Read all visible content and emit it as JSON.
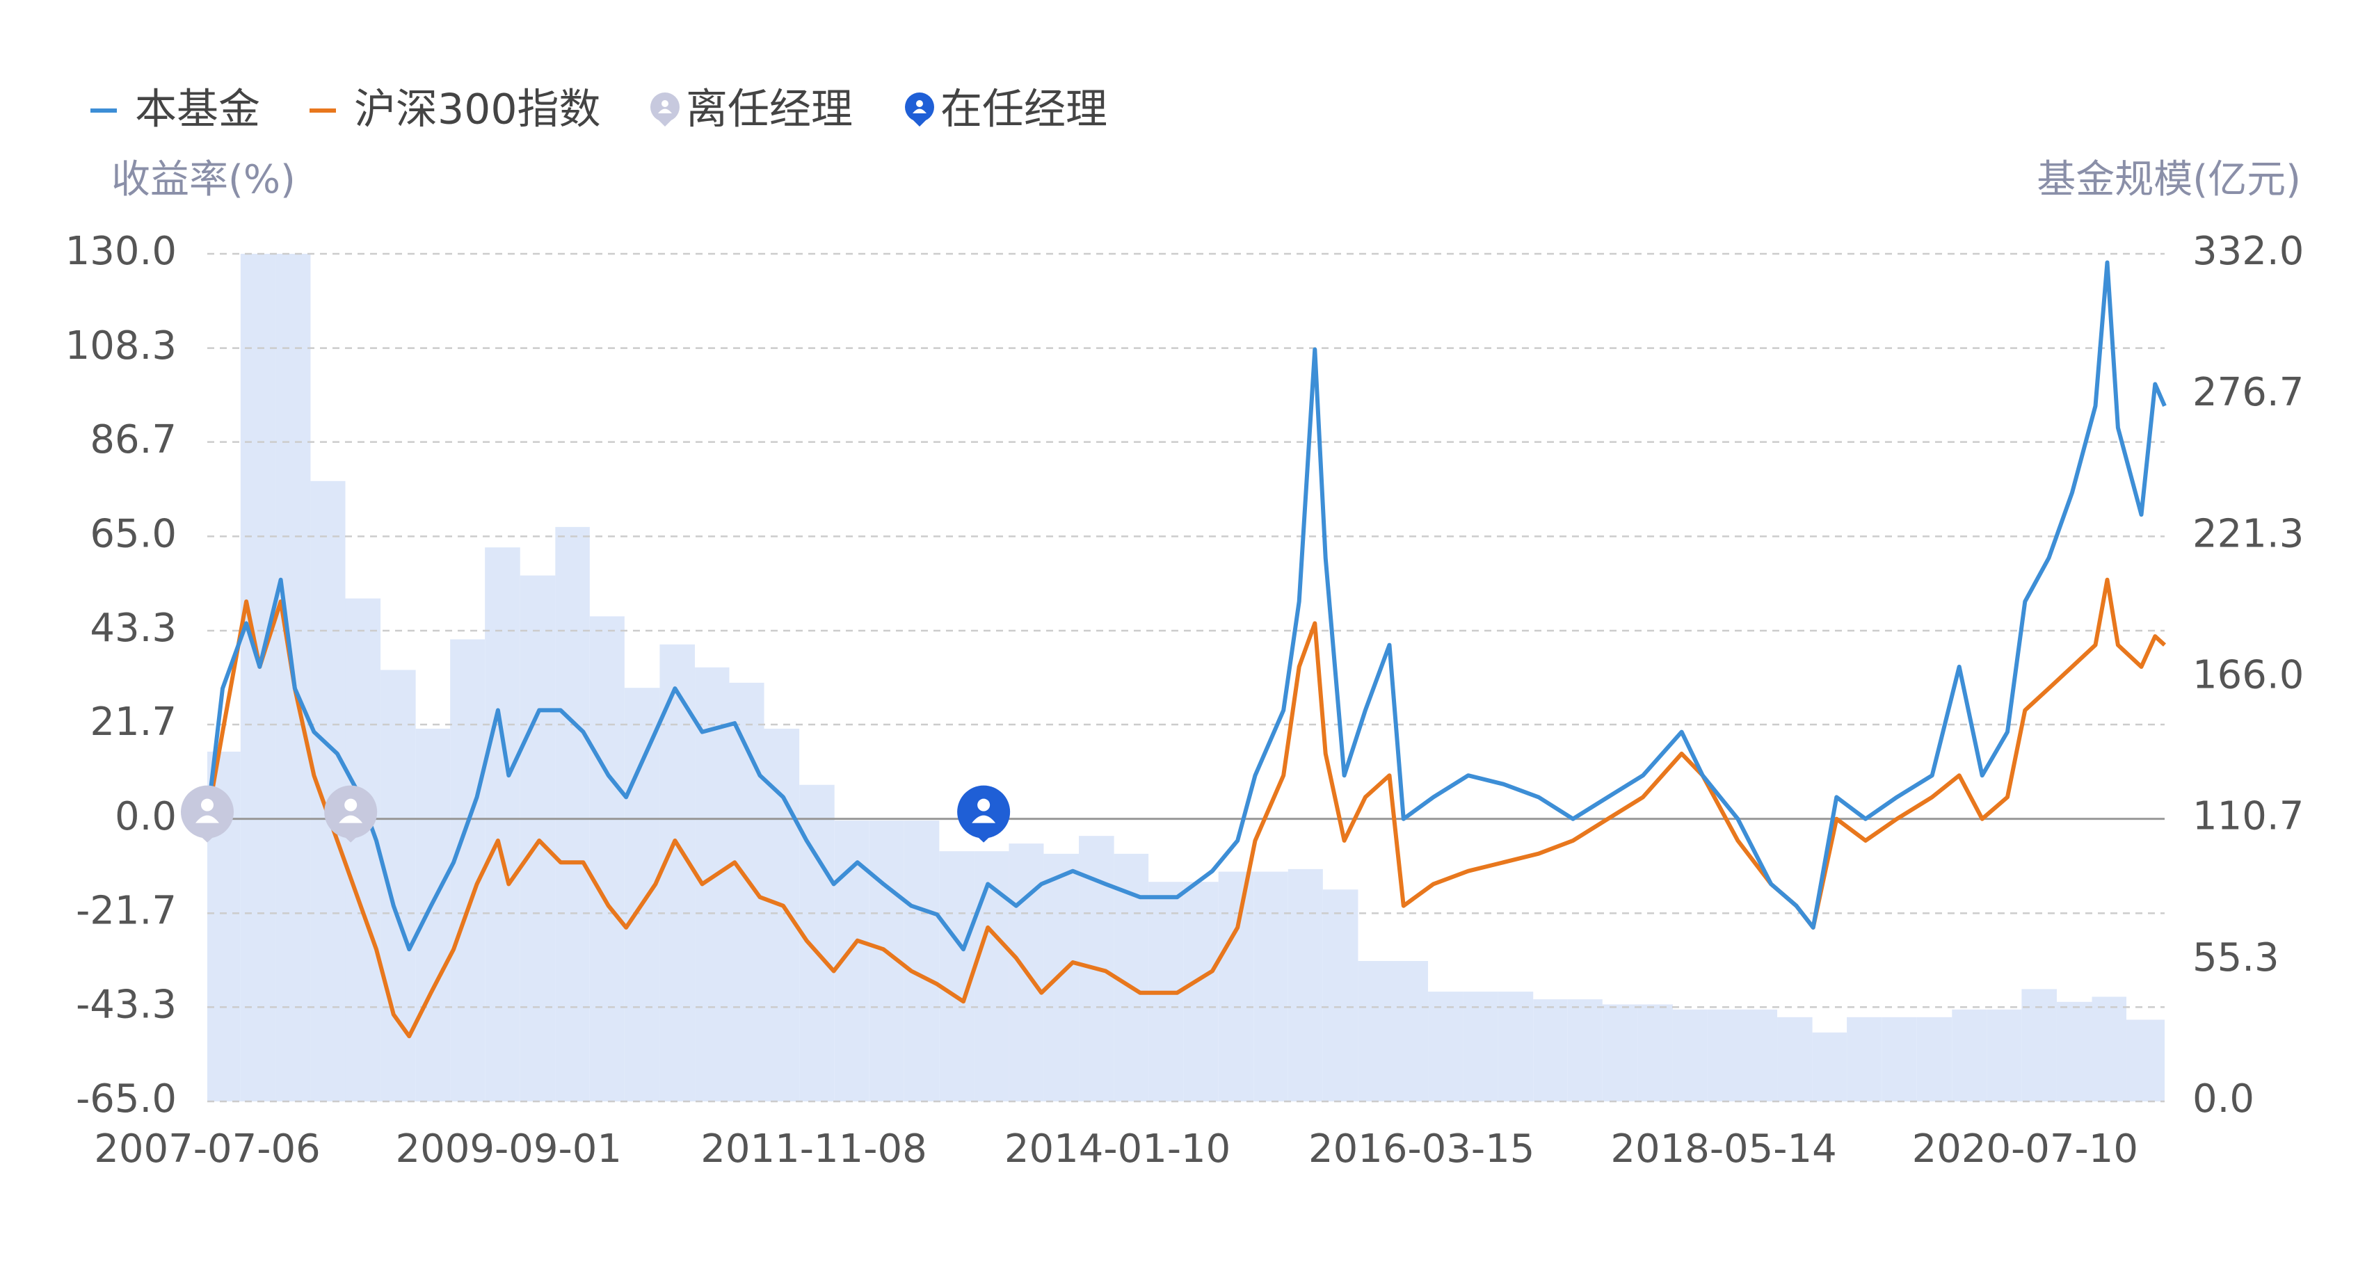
{
  "chart_data": {
    "type": "line",
    "ylabel": "收益率(%)",
    "y2label": "基金规模(亿元)",
    "grid": true,
    "xlim": [
      "2007-07-06",
      "2021-07-10"
    ],
    "xticks": [
      "2007-07-06",
      "2009-09-01",
      "2011-11-08",
      "2014-01-10",
      "2016-03-15",
      "2018-05-14",
      "2020-07-10"
    ],
    "ylim": [
      -65,
      130
    ],
    "yticks": [
      {
        "value": 130,
        "label": "130.0"
      },
      108.3,
      86.7,
      {
        "value": 65,
        "label": "65.0"
      },
      43.3,
      21.7,
      {
        "value": 0,
        "label": "0.0"
      },
      -21.7,
      -43.3,
      {
        "value": -65,
        "label": "-65.0"
      }
    ],
    "y2lim": [
      0,
      332
    ],
    "y2ticks": [
      {
        "value": 332,
        "label": "332.0"
      },
      276.7,
      221.3,
      {
        "value": 166,
        "label": "166.0"
      },
      110.7,
      55.3,
      {
        "value": 0,
        "label": "0.0"
      }
    ],
    "x": [
      "2007-07-06",
      "2007-08-15",
      "2007-10-16",
      "2007-11-20",
      "2008-01-14",
      "2008-02-20",
      "2008-04-10",
      "2008-06-10",
      "2008-08-10",
      "2008-09-20",
      "2008-11-04",
      "2008-12-15",
      "2009-02-10",
      "2009-04-10",
      "2009-06-10",
      "2009-08-04",
      "2009-09-01",
      "2009-11-20",
      "2010-01-15",
      "2010-03-15",
      "2010-05-20",
      "2010-07-05",
      "2010-09-20",
      "2010-11-10",
      "2011-01-20",
      "2011-04-15",
      "2011-06-20",
      "2011-08-20",
      "2011-10-20",
      "2011-12-30",
      "2012-03-01",
      "2012-05-08",
      "2012-07-20",
      "2012-09-25",
      "2012-12-03",
      "2013-02-05",
      "2013-04-20",
      "2013-06-25",
      "2013-09-15",
      "2013-12-10",
      "2014-03-10",
      "2014-06-15",
      "2014-09-15",
      "2014-11-20",
      "2015-01-05",
      "2015-03-20",
      "2015-04-30",
      "2015-06-10",
      "2015-07-08",
      "2015-08-26",
      "2015-10-20",
      "2015-12-22",
      "2016-01-28",
      "2016-04-15",
      "2016-07-15",
      "2016-10-15",
      "2017-01-15",
      "2017-04-15",
      "2017-07-15",
      "2017-10-15",
      "2018-01-24",
      "2018-03-20",
      "2018-06-20",
      "2018-09-15",
      "2018-11-20",
      "2019-01-03",
      "2019-03-05",
      "2019-05-20",
      "2019-08-10",
      "2019-11-10",
      "2020-01-20",
      "2020-03-20",
      "2020-05-25",
      "2020-07-10",
      "2020-09-10",
      "2020-11-10",
      "2021-01-10",
      "2021-02-10",
      "2021-03-10",
      "2021-05-10",
      "2021-06-15",
      "2021-07-10"
    ],
    "series": [
      {
        "name": "本基金",
        "color": "#3d8ed6",
        "values": [
          0,
          30,
          45,
          35,
          55,
          30,
          20,
          15,
          5,
          -5,
          -20,
          -30,
          -20,
          -10,
          5,
          25,
          10,
          25,
          25,
          20,
          10,
          5,
          20,
          30,
          20,
          22,
          10,
          5,
          -5,
          -15,
          -10,
          -15,
          -20,
          -22,
          -30,
          -15,
          -20,
          -15,
          -12,
          -15,
          -18,
          -18,
          -12,
          -5,
          10,
          25,
          50,
          108,
          60,
          10,
          25,
          40,
          0,
          5,
          10,
          8,
          5,
          0,
          5,
          10,
          20,
          10,
          0,
          -15,
          -20,
          -25,
          5,
          0,
          5,
          10,
          35,
          10,
          20,
          50,
          60,
          75,
          95,
          128,
          90,
          70,
          100,
          95
        ]
      },
      {
        "name": "沪深300指数",
        "color": "#e8771d",
        "values": [
          0,
          20,
          50,
          35,
          50,
          30,
          10,
          -5,
          -20,
          -30,
          -45,
          -50,
          -40,
          -30,
          -15,
          -5,
          -15,
          -5,
          -10,
          -10,
          -20,
          -25,
          -15,
          -5,
          -15,
          -10,
          -18,
          -20,
          -28,
          -35,
          -28,
          -30,
          -35,
          -38,
          -42,
          -25,
          -32,
          -40,
          -33,
          -35,
          -40,
          -40,
          -35,
          -25,
          -5,
          10,
          35,
          45,
          15,
          -5,
          5,
          10,
          -20,
          -15,
          -12,
          -10,
          -8,
          -5,
          0,
          5,
          15,
          10,
          -5,
          -15,
          -20,
          -25,
          0,
          -5,
          0,
          5,
          10,
          0,
          5,
          25,
          30,
          35,
          40,
          55,
          40,
          35,
          42,
          40
        ]
      }
    ],
    "bars": {
      "color": "#dde7f9",
      "axis": "y2",
      "x": [
        "2007-07-06",
        "2007-10-01",
        "2008-01-01",
        "2008-04-01",
        "2008-07-01",
        "2008-10-01",
        "2009-01-01",
        "2009-04-01",
        "2009-07-01",
        "2009-10-01",
        "2010-01-01",
        "2010-04-01",
        "2010-07-01",
        "2010-10-01",
        "2011-01-01",
        "2011-04-01",
        "2011-07-01",
        "2011-10-01",
        "2012-01-01",
        "2012-04-01",
        "2012-07-01",
        "2012-10-01",
        "2013-01-01",
        "2013-04-01",
        "2013-07-01",
        "2013-10-01",
        "2014-01-01",
        "2014-04-01",
        "2014-07-01",
        "2014-10-01",
        "2015-01-01",
        "2015-04-01",
        "2015-07-01",
        "2015-10-01",
        "2016-01-01",
        "2016-04-01",
        "2016-07-01",
        "2016-10-01",
        "2017-01-01",
        "2017-04-01",
        "2017-07-01",
        "2017-10-01",
        "2018-01-01",
        "2018-04-01",
        "2018-07-01",
        "2018-10-01",
        "2019-01-01",
        "2019-04-01",
        "2019-07-01",
        "2019-10-01",
        "2020-01-01",
        "2020-04-01",
        "2020-07-01",
        "2020-10-01",
        "2021-01-01",
        "2021-04-01"
      ],
      "values": [
        137,
        332,
        332,
        243,
        197,
        169,
        146,
        181,
        217,
        206,
        225,
        190,
        162,
        179,
        170,
        164,
        146,
        124,
        110,
        110,
        110,
        98,
        98,
        101,
        97,
        104,
        97,
        86,
        86,
        90,
        90,
        91,
        83,
        55,
        55,
        43,
        43,
        43,
        40,
        40,
        38,
        38,
        36,
        36,
        36,
        33,
        27,
        33,
        33,
        33,
        36,
        36,
        44,
        39,
        41,
        32
      ]
    },
    "managers": [
      {
        "name": "离任经理",
        "color": "#c7c9de",
        "x": [
          "2007-07-06",
          "2008-07-15"
        ]
      },
      {
        "name": "在任经理",
        "color": "#1f5fd6",
        "x": [
          "2013-01-25"
        ]
      }
    ]
  }
}
